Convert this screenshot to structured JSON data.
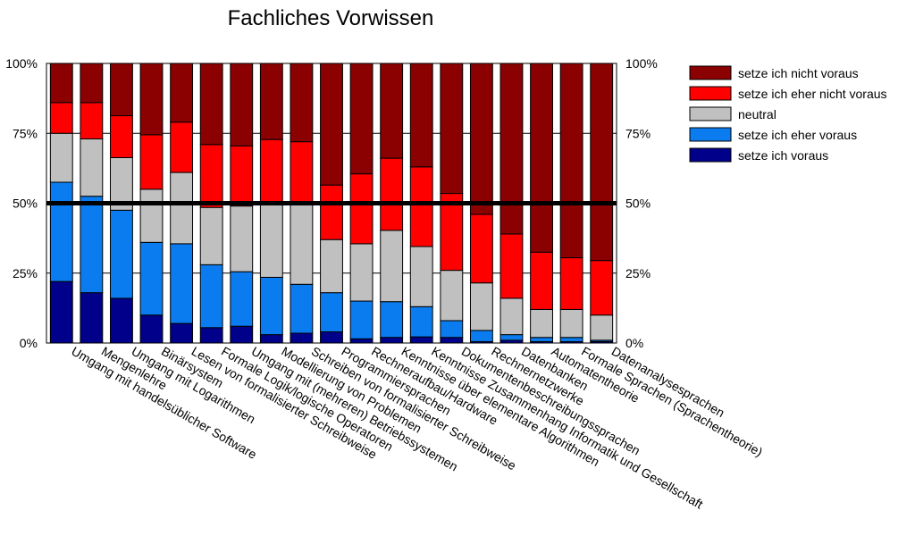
{
  "chart_data": {
    "type": "bar",
    "stacked": true,
    "title": "Fachliches Vorwissen",
    "categories": [
      "Umgang mit handelsüblicher Software",
      "Mengenlehre",
      "Umgang mit Logarithmen",
      "Binärsystem",
      "Lesen von formalisierter Schreibweise",
      "Formale Logik/logische Operatoren",
      "Umgang mit (mehreren) Betriebssystemen",
      "Modellierung von Problemen",
      "Schreiben von formalisierter Schreibweise",
      "Programmiersprachen",
      "Rechneraufbau/Hardware",
      "Kenntnisse über elementare Algorithmen",
      "Kenntnisse Zusammenhang Informatik und Gesellschaft",
      "Dokumentenbeschreibungssprachen",
      "Rechnernetzwerke",
      "Datenbanken",
      "Automatentheorie",
      "Formale Sprachen (Sprachentheorie)",
      "Datenanalysesprachen"
    ],
    "series": [
      {
        "name": "setze ich voraus",
        "color": "#00008b",
        "values": [
          22,
          18,
          16,
          10,
          7,
          5.5,
          6,
          3,
          3.5,
          4,
          1.5,
          2,
          2.2,
          2,
          0.5,
          1,
          0.5,
          0.5,
          0.5
        ]
      },
      {
        "name": "setze ich eher voraus",
        "color": "#0a7cf0",
        "values": [
          35.5,
          34.5,
          31.5,
          26,
          28.5,
          22.5,
          19.5,
          20.5,
          17.5,
          14,
          13.5,
          12.8,
          10.8,
          6,
          4,
          2,
          1.5,
          1.5,
          0.5
        ]
      },
      {
        "name": "neutral",
        "color": "#c0c0c0",
        "values": [
          17.5,
          20.5,
          18.8,
          19,
          25.5,
          20.5,
          23.5,
          26.5,
          28.5,
          19,
          20.5,
          25.5,
          21.5,
          18,
          17,
          13,
          10,
          10,
          9
        ]
      },
      {
        "name": "setze ich eher nicht voraus",
        "color": "#ff0000",
        "values": [
          11,
          13,
          15,
          19.5,
          18,
          22.5,
          21.5,
          22.8,
          22.5,
          19.5,
          25,
          25.8,
          28.5,
          27.5,
          24.5,
          23,
          20.5,
          18.5,
          19.5
        ]
      },
      {
        "name": "setze ich nicht voraus",
        "color": "#8b0000",
        "values": [
          14,
          14,
          18.7,
          25.5,
          21,
          29,
          29.5,
          27.2,
          28,
          43.5,
          39.5,
          33.9,
          37,
          46.5,
          54,
          61,
          67.5,
          69.5,
          70.5
        ]
      }
    ],
    "yaxis_left": {
      "ticks": [
        "0%",
        "25%",
        "50%",
        "75%",
        "100%"
      ],
      "ylim": [
        0,
        100
      ]
    },
    "yaxis_right": {
      "ticks": [
        "100%",
        "75%",
        "50%",
        "25%",
        "0%"
      ]
    },
    "reference_line": 50,
    "legend_position": "top-right",
    "grid": true
  }
}
